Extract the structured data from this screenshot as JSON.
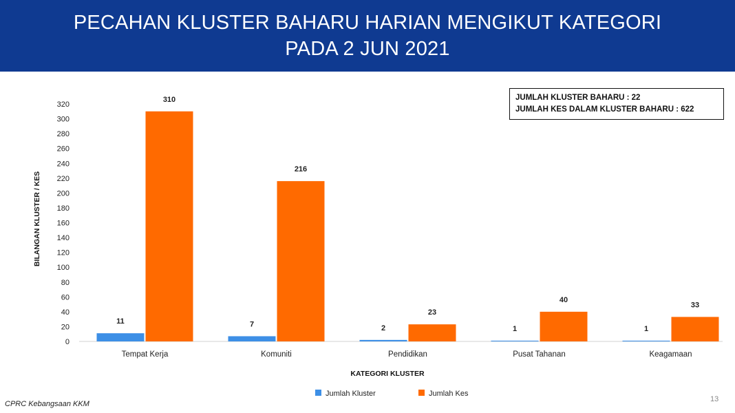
{
  "header": {
    "title_line1": "PECAHAN KLUSTER BAHARU HARIAN MENGIKUT KATEGORI",
    "title_line2": "PADA 2 JUN 2021"
  },
  "summary": {
    "line1": "JUMLAH KLUSTER BAHARU : 22",
    "line2": "JUMLAH KES DALAM KLUSTER BAHARU : 622"
  },
  "footer": {
    "source": "CPRC Kebangsaan KKM",
    "page_number": "13"
  },
  "colors": {
    "header_bg": "#0f3a91",
    "jumlah_kluster": "#3d8fe6",
    "jumlah_kes": "#ff6a00"
  },
  "chart_data": {
    "type": "bar",
    "title": "PECAHAN KLUSTER BAHARU HARIAN MENGIKUT KATEGORI PADA 2 JUN 2021",
    "xlabel": "KATEGORI KLUSTER",
    "ylabel": "BILANGAN KLUSTER / KES",
    "categories": [
      "Tempat Kerja",
      "Komuniti",
      "Pendidikan",
      "Pusat Tahanan",
      "Keagamaan"
    ],
    "series": [
      {
        "name": "Jumlah Kluster",
        "values": [
          11,
          7,
          2,
          1,
          1
        ]
      },
      {
        "name": "Jumlah Kes",
        "values": [
          310,
          216,
          23,
          40,
          33
        ]
      }
    ],
    "ylim": [
      0,
      320
    ],
    "yticks": [
      0,
      20,
      40,
      60,
      80,
      100,
      120,
      140,
      160,
      180,
      200,
      220,
      240,
      260,
      280,
      300,
      320
    ],
    "grid": false,
    "legend": "bottom"
  }
}
